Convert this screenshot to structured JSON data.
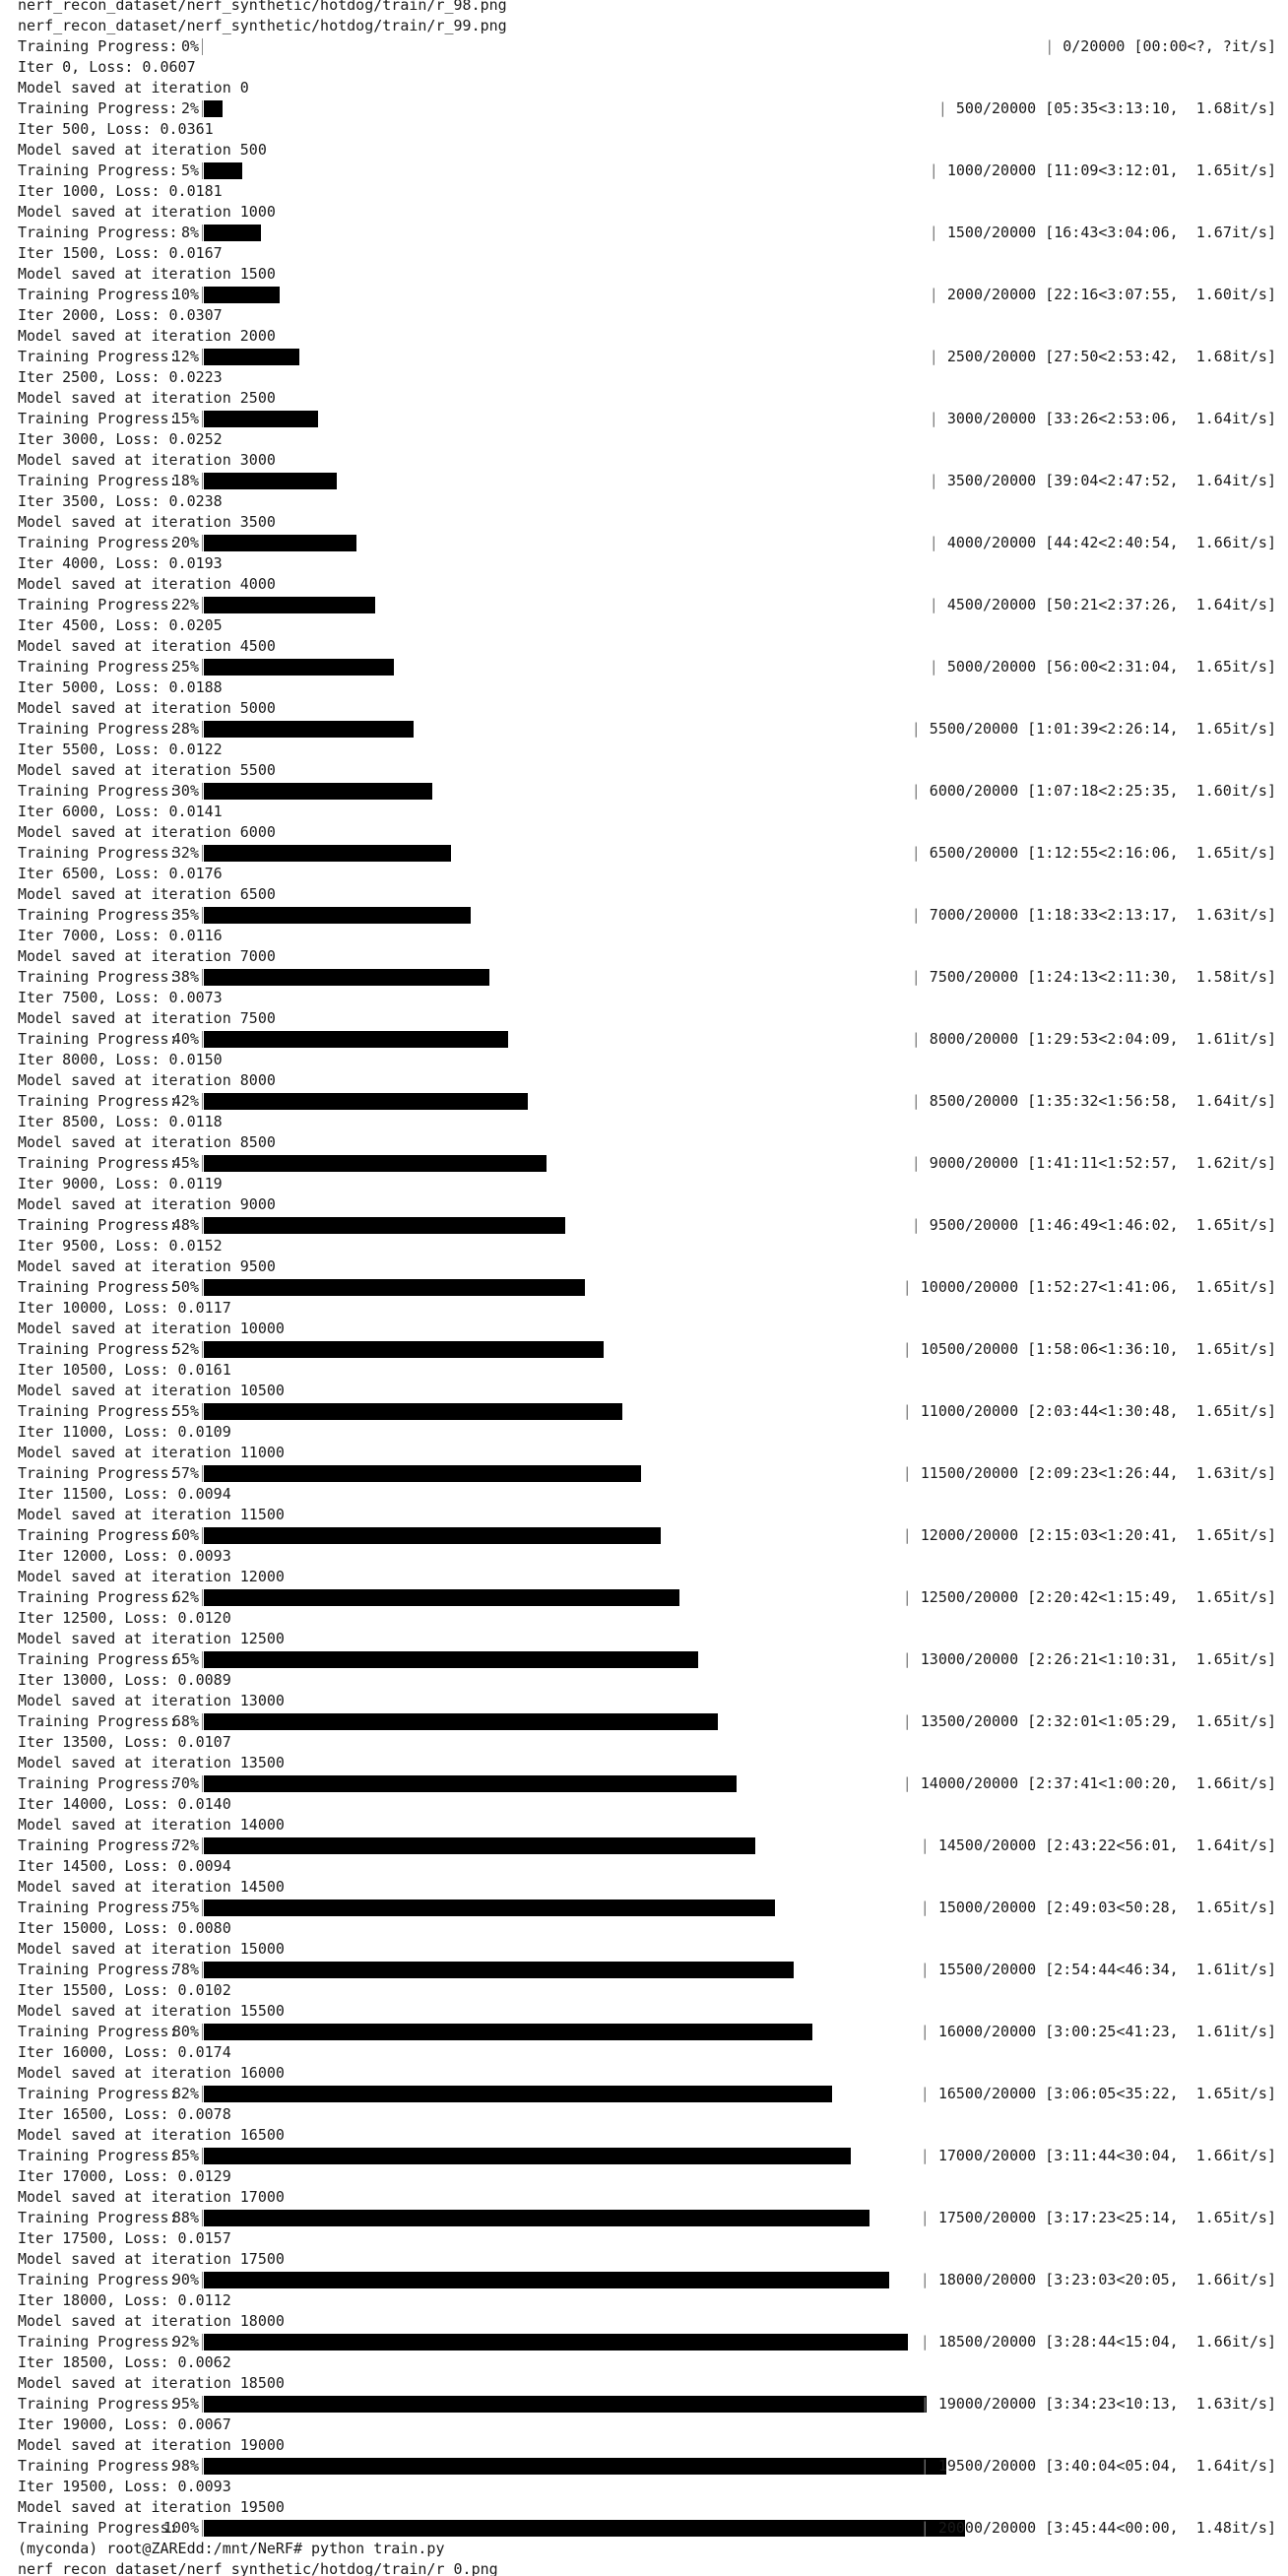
{
  "terminal": {
    "header_lines": [
      "nerf_recon_dataset/nerf_synthetic/hotdog/train/r_98.png",
      "nerf_recon_dataset/nerf_synthetic/hotdog/train/r_99.png"
    ],
    "progress_label": "Training Progress:",
    "saved_prefix": "Model saved at iteration",
    "iterations": [
      {
        "pct": "0%",
        "fill": 0,
        "stats": "0/20000 [00:00<?, ?it/s]",
        "iter_loss": "Iter 0, Loss: 0.0607",
        "saved": "0"
      },
      {
        "pct": "2%",
        "fill": 0.025,
        "stats": "500/20000 [05:35<3:13:10,  1.68it/s]",
        "iter_loss": "Iter 500, Loss: 0.0361",
        "saved": "500"
      },
      {
        "pct": "5%",
        "fill": 0.05,
        "stats": "1000/20000 [11:09<3:12:01,  1.65it/s]",
        "iter_loss": "Iter 1000, Loss: 0.0181",
        "saved": "1000"
      },
      {
        "pct": "8%",
        "fill": 0.075,
        "stats": "1500/20000 [16:43<3:04:06,  1.67it/s]",
        "iter_loss": "Iter 1500, Loss: 0.0167",
        "saved": "1500"
      },
      {
        "pct": "10%",
        "fill": 0.1,
        "stats": "2000/20000 [22:16<3:07:55,  1.60it/s]",
        "iter_loss": "Iter 2000, Loss: 0.0307",
        "saved": "2000"
      },
      {
        "pct": "12%",
        "fill": 0.125,
        "stats": "2500/20000 [27:50<2:53:42,  1.68it/s]",
        "iter_loss": "Iter 2500, Loss: 0.0223",
        "saved": "2500"
      },
      {
        "pct": "15%",
        "fill": 0.15,
        "stats": "3000/20000 [33:26<2:53:06,  1.64it/s]",
        "iter_loss": "Iter 3000, Loss: 0.0252",
        "saved": "3000"
      },
      {
        "pct": "18%",
        "fill": 0.175,
        "stats": "3500/20000 [39:04<2:47:52,  1.64it/s]",
        "iter_loss": "Iter 3500, Loss: 0.0238",
        "saved": "3500"
      },
      {
        "pct": "20%",
        "fill": 0.2,
        "stats": "4000/20000 [44:42<2:40:54,  1.66it/s]",
        "iter_loss": "Iter 4000, Loss: 0.0193",
        "saved": "4000"
      },
      {
        "pct": "22%",
        "fill": 0.225,
        "stats": "4500/20000 [50:21<2:37:26,  1.64it/s]",
        "iter_loss": "Iter 4500, Loss: 0.0205",
        "saved": "4500"
      },
      {
        "pct": "25%",
        "fill": 0.25,
        "stats": "5000/20000 [56:00<2:31:04,  1.65it/s]",
        "iter_loss": "Iter 5000, Loss: 0.0188",
        "saved": "5000"
      },
      {
        "pct": "28%",
        "fill": 0.275,
        "stats": "5500/20000 [1:01:39<2:26:14,  1.65it/s]",
        "iter_loss": "Iter 5500, Loss: 0.0122",
        "saved": "5500"
      },
      {
        "pct": "30%",
        "fill": 0.3,
        "stats": "6000/20000 [1:07:18<2:25:35,  1.60it/s]",
        "iter_loss": "Iter 6000, Loss: 0.0141",
        "saved": "6000"
      },
      {
        "pct": "32%",
        "fill": 0.325,
        "stats": "6500/20000 [1:12:55<2:16:06,  1.65it/s]",
        "iter_loss": "Iter 6500, Loss: 0.0176",
        "saved": "6500"
      },
      {
        "pct": "35%",
        "fill": 0.35,
        "stats": "7000/20000 [1:18:33<2:13:17,  1.63it/s]",
        "iter_loss": "Iter 7000, Loss: 0.0116",
        "saved": "7000"
      },
      {
        "pct": "38%",
        "fill": 0.375,
        "stats": "7500/20000 [1:24:13<2:11:30,  1.58it/s]",
        "iter_loss": "Iter 7500, Loss: 0.0073",
        "saved": "7500"
      },
      {
        "pct": "40%",
        "fill": 0.4,
        "stats": "8000/20000 [1:29:53<2:04:09,  1.61it/s]",
        "iter_loss": "Iter 8000, Loss: 0.0150",
        "saved": "8000"
      },
      {
        "pct": "42%",
        "fill": 0.425,
        "stats": "8500/20000 [1:35:32<1:56:58,  1.64it/s]",
        "iter_loss": "Iter 8500, Loss: 0.0118",
        "saved": "8500"
      },
      {
        "pct": "45%",
        "fill": 0.45,
        "stats": "9000/20000 [1:41:11<1:52:57,  1.62it/s]",
        "iter_loss": "Iter 9000, Loss: 0.0119",
        "saved": "9000"
      },
      {
        "pct": "48%",
        "fill": 0.475,
        "stats": "9500/20000 [1:46:49<1:46:02,  1.65it/s]",
        "iter_loss": "Iter 9500, Loss: 0.0152",
        "saved": "9500"
      },
      {
        "pct": "50%",
        "fill": 0.5,
        "stats": "10000/20000 [1:52:27<1:41:06,  1.65it/s]",
        "iter_loss": "Iter 10000, Loss: 0.0117",
        "saved": "10000"
      },
      {
        "pct": "52%",
        "fill": 0.525,
        "stats": "10500/20000 [1:58:06<1:36:10,  1.65it/s]",
        "iter_loss": "Iter 10500, Loss: 0.0161",
        "saved": "10500"
      },
      {
        "pct": "55%",
        "fill": 0.55,
        "stats": "11000/20000 [2:03:44<1:30:48,  1.65it/s]",
        "iter_loss": "Iter 11000, Loss: 0.0109",
        "saved": "11000"
      },
      {
        "pct": "57%",
        "fill": 0.575,
        "stats": "11500/20000 [2:09:23<1:26:44,  1.63it/s]",
        "iter_loss": "Iter 11500, Loss: 0.0094",
        "saved": "11500"
      },
      {
        "pct": "60%",
        "fill": 0.6,
        "stats": "12000/20000 [2:15:03<1:20:41,  1.65it/s]",
        "iter_loss": "Iter 12000, Loss: 0.0093",
        "saved": "12000"
      },
      {
        "pct": "62%",
        "fill": 0.625,
        "stats": "12500/20000 [2:20:42<1:15:49,  1.65it/s]",
        "iter_loss": "Iter 12500, Loss: 0.0120",
        "saved": "12500"
      },
      {
        "pct": "65%",
        "fill": 0.65,
        "stats": "13000/20000 [2:26:21<1:10:31,  1.65it/s]",
        "iter_loss": "Iter 13000, Loss: 0.0089",
        "saved": "13000"
      },
      {
        "pct": "68%",
        "fill": 0.675,
        "stats": "13500/20000 [2:32:01<1:05:29,  1.65it/s]",
        "iter_loss": "Iter 13500, Loss: 0.0107",
        "saved": "13500"
      },
      {
        "pct": "70%",
        "fill": 0.7,
        "stats": "14000/20000 [2:37:41<1:00:20,  1.66it/s]",
        "iter_loss": "Iter 14000, Loss: 0.0140",
        "saved": "14000"
      },
      {
        "pct": "72%",
        "fill": 0.725,
        "stats": "14500/20000 [2:43:22<56:01,  1.64it/s]",
        "iter_loss": "Iter 14500, Loss: 0.0094",
        "saved": "14500"
      },
      {
        "pct": "75%",
        "fill": 0.75,
        "stats": "15000/20000 [2:49:03<50:28,  1.65it/s]",
        "iter_loss": "Iter 15000, Loss: 0.0080",
        "saved": "15000"
      },
      {
        "pct": "78%",
        "fill": 0.775,
        "stats": "15500/20000 [2:54:44<46:34,  1.61it/s]",
        "iter_loss": "Iter 15500, Loss: 0.0102",
        "saved": "15500"
      },
      {
        "pct": "80%",
        "fill": 0.8,
        "stats": "16000/20000 [3:00:25<41:23,  1.61it/s]",
        "iter_loss": "Iter 16000, Loss: 0.0174",
        "saved": "16000"
      },
      {
        "pct": "82%",
        "fill": 0.825,
        "stats": "16500/20000 [3:06:05<35:22,  1.65it/s]",
        "iter_loss": "Iter 16500, Loss: 0.0078",
        "saved": "16500"
      },
      {
        "pct": "85%",
        "fill": 0.85,
        "stats": "17000/20000 [3:11:44<30:04,  1.66it/s]",
        "iter_loss": "Iter 17000, Loss: 0.0129",
        "saved": "17000"
      },
      {
        "pct": "88%",
        "fill": 0.875,
        "stats": "17500/20000 [3:17:23<25:14,  1.65it/s]",
        "iter_loss": "Iter 17500, Loss: 0.0157",
        "saved": "17500"
      },
      {
        "pct": "90%",
        "fill": 0.9,
        "stats": "18000/20000 [3:23:03<20:05,  1.66it/s]",
        "iter_loss": "Iter 18000, Loss: 0.0112",
        "saved": "18000"
      },
      {
        "pct": "92%",
        "fill": 0.925,
        "stats": "18500/20000 [3:28:44<15:04,  1.66it/s]",
        "iter_loss": "Iter 18500, Loss: 0.0062",
        "saved": "18500"
      },
      {
        "pct": "95%",
        "fill": 0.95,
        "stats": "19000/20000 [3:34:23<10:13,  1.63it/s]",
        "iter_loss": "Iter 19000, Loss: 0.0067",
        "saved": "19000"
      },
      {
        "pct": "98%",
        "fill": 0.975,
        "stats": "19500/20000 [3:40:04<05:04,  1.64it/s]",
        "iter_loss": "Iter 19500, Loss: 0.0093",
        "saved": "19500"
      },
      {
        "pct": "100%",
        "fill": 1.0,
        "stats": "20000/20000 [3:45:44<00:00,  1.48it/s]",
        "iter_loss": null,
        "saved": null
      }
    ],
    "footer_lines": [
      "(myconda) root@ZAREdd:/mnt/NeRF# python train.py",
      "nerf_recon_dataset/nerf_synthetic/hotdog/train/r_0.png"
    ],
    "colors": {
      "background": "#ffffff",
      "text": "#1a1a1a",
      "bar": "#000000"
    }
  }
}
